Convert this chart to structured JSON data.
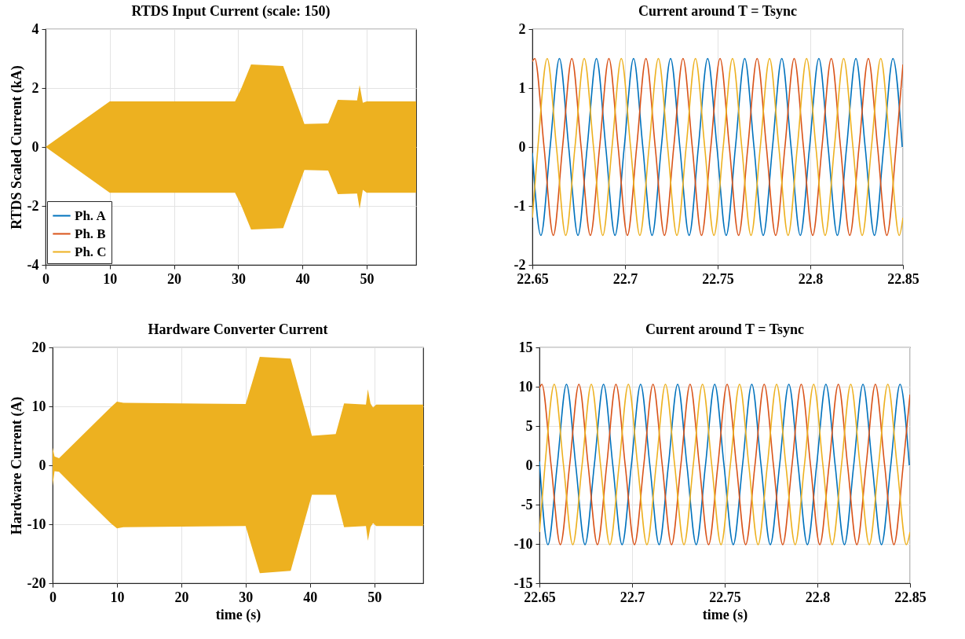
{
  "chart_data": [
    {
      "type": "line",
      "title": "RTDS Input Current (scale: 150)",
      "ylabel": "RTDS Scaled Current (kA)",
      "x": [
        0,
        10,
        23,
        29.5,
        30.5,
        32,
        37,
        40.3,
        44,
        45.5,
        48.5,
        48.9,
        49.4,
        50,
        57.7
      ],
      "xlim": [
        0,
        57.7
      ],
      "xticks": [
        0,
        10,
        20,
        30,
        40,
        50
      ],
      "ylim": [
        -4,
        4
      ],
      "yticks": [
        -4,
        -2,
        0,
        2,
        4
      ],
      "grid": true,
      "legend": "bottom left",
      "series": [
        {
          "name": "Ph. A",
          "color": "#0072bd",
          "values": [
            null,
            null,
            null,
            null,
            null,
            null,
            null,
            null,
            null,
            null,
            null,
            null,
            null,
            null,
            null
          ]
        },
        {
          "name": "Ph. B",
          "color": "#d95319",
          "values": [
            null,
            null,
            null,
            null,
            null,
            null,
            null,
            null,
            null,
            null,
            null,
            null,
            null,
            null,
            null
          ]
        },
        {
          "name": "Ph. C",
          "color": "#edb120",
          "values": [
            null,
            null,
            null,
            null,
            null,
            null,
            null,
            null,
            null,
            null,
            null,
            null,
            null,
            null,
            null
          ],
          "upper": [
            0,
            1.55,
            1.55,
            1.55,
            2.0,
            2.8,
            2.75,
            0.78,
            0.8,
            1.6,
            1.58,
            2.1,
            1.5,
            1.55,
            1.55
          ],
          "lower": [
            0,
            -1.55,
            -1.55,
            -1.55,
            -2.0,
            -2.8,
            -2.75,
            -0.78,
            -0.8,
            -1.6,
            -1.58,
            -2.1,
            -1.45,
            -1.55,
            -1.55
          ]
        }
      ]
    },
    {
      "type": "line",
      "title": "Current around T = Tsync",
      "xlim": [
        22.65,
        22.85
      ],
      "xticks": [
        22.65,
        22.7,
        22.75,
        22.8,
        22.85
      ],
      "ylim": [
        -2,
        2
      ],
      "yticks": [
        -2,
        -1,
        0,
        1,
        2
      ],
      "grid": true,
      "series": [
        {
          "color": "#0072bd",
          "x": [
            22.65,
            22.6546,
            22.6596,
            22.6646,
            22.6696,
            22.6746,
            22.6796,
            22.6846,
            22.6896,
            22.6946,
            22.6996,
            22.7046,
            22.7096,
            22.7146,
            22.7196,
            22.7246,
            22.7296,
            22.7346,
            22.7396,
            22.7446,
            22.7496,
            22.7546,
            22.7596,
            22.7646,
            22.7696,
            22.7746,
            22.7796,
            22.7846,
            22.7896,
            22.7946,
            22.7996,
            22.8046,
            22.8096,
            22.8146,
            22.8196,
            22.8246,
            22.8296,
            22.8346,
            22.8396,
            22.8446,
            22.8496
          ],
          "values": [
            -0.1,
            -1.5,
            0,
            1.5,
            0,
            -1.5,
            0,
            1.5,
            0,
            -1.5,
            0,
            1.5,
            0,
            -1.5,
            0,
            1.5,
            0,
            -1.5,
            0,
            1.5,
            0,
            -1.5,
            0,
            1.5,
            0,
            -1.5,
            0,
            1.5,
            0,
            -1.5,
            0,
            1.5,
            0,
            -1.5,
            0,
            1.5,
            0,
            -1.5,
            0,
            1.5,
            0
          ]
        },
        {
          "color": "#d95319",
          "x": [
            22.65,
            22.6513,
            22.6563,
            22.6613,
            22.6663,
            22.6713,
            22.6763,
            22.6813,
            22.6863,
            22.6913,
            22.6963,
            22.7013,
            22.7063,
            22.7113,
            22.7163,
            22.7213,
            22.7263,
            22.7313,
            22.7363,
            22.7413,
            22.7463,
            22.7513,
            22.7563,
            22.7613,
            22.7663,
            22.7713,
            22.7763,
            22.7813,
            22.7863,
            22.7913,
            22.7963,
            22.8013,
            22.8063,
            22.8113,
            22.8163,
            22.8213,
            22.8263,
            22.8313,
            22.8363,
            22.8413,
            22.8463,
            22.85
          ],
          "values": [
            1.45,
            1.5,
            0,
            -1.5,
            0,
            1.5,
            0,
            -1.5,
            0,
            1.5,
            0,
            -1.5,
            0,
            1.5,
            0,
            -1.5,
            0,
            1.5,
            0,
            -1.5,
            0,
            1.5,
            0,
            -1.5,
            0,
            1.5,
            0,
            -1.5,
            0,
            1.5,
            0,
            -1.5,
            0,
            1.5,
            0,
            -1.5,
            0,
            1.5,
            0,
            -1.5,
            0,
            1.4
          ]
        },
        {
          "color": "#edb120",
          "x": [
            22.65,
            22.653,
            22.658,
            22.663,
            22.668,
            22.673,
            22.678,
            22.683,
            22.688,
            22.693,
            22.698,
            22.703,
            22.708,
            22.713,
            22.718,
            22.723,
            22.728,
            22.733,
            22.738,
            22.743,
            22.748,
            22.753,
            22.758,
            22.763,
            22.768,
            22.773,
            22.778,
            22.783,
            22.788,
            22.793,
            22.798,
            22.803,
            22.808,
            22.813,
            22.818,
            22.823,
            22.828,
            22.833,
            22.838,
            22.843,
            22.848,
            22.85
          ],
          "values": [
            -1.2,
            0,
            1.5,
            0,
            -1.5,
            0,
            1.5,
            0,
            -1.5,
            0,
            1.5,
            0,
            -1.5,
            0,
            1.5,
            0,
            -1.5,
            0,
            1.5,
            0,
            -1.5,
            0,
            1.5,
            0,
            -1.5,
            0,
            1.5,
            0,
            -1.5,
            0,
            1.5,
            0,
            -1.5,
            0,
            1.5,
            0,
            -1.5,
            0,
            1.5,
            0,
            -1.5,
            -1.2
          ]
        }
      ]
    },
    {
      "type": "line",
      "title": "Hardware Converter Current",
      "xlabel": "time (s)",
      "ylabel": "Hardware Current (A)",
      "x": [
        0,
        0.3,
        1,
        5,
        9,
        10,
        11,
        30,
        31,
        32.2,
        37,
        40.3,
        44,
        45.3,
        48.7,
        49,
        49.4,
        49.8,
        50.3,
        57.6
      ],
      "xlim": [
        0,
        57.6
      ],
      "xticks": [
        0,
        10,
        20,
        30,
        40,
        50
      ],
      "ylim": [
        -20,
        20
      ],
      "yticks": [
        -20,
        -10,
        0,
        10,
        20
      ],
      "grid": true,
      "series": [
        {
          "color": "#edb120",
          "values": [
            null,
            null,
            null,
            null,
            null,
            null,
            null,
            null,
            null,
            null,
            null,
            null,
            null,
            null,
            null,
            null,
            null,
            null,
            null,
            null
          ],
          "upper": [
            3,
            1.5,
            1.2,
            5.5,
            9.8,
            10.8,
            10.6,
            10.4,
            14,
            18.4,
            18.1,
            5,
            5.3,
            10.5,
            10.3,
            12.9,
            10.5,
            9.8,
            10.3,
            10.3
          ],
          "lower": [
            -3.5,
            -1,
            -1.1,
            -5.5,
            -9.8,
            -10.7,
            -10.5,
            -10.3,
            -14,
            -18.3,
            -17.9,
            -5,
            -5,
            -10.5,
            -10.3,
            -12.8,
            -10.5,
            -9.8,
            -10.3,
            -10.3
          ]
        }
      ]
    },
    {
      "type": "line",
      "title": "Current around T = Tsync",
      "xlabel": "time (s)",
      "xlim": [
        22.65,
        22.85
      ],
      "xticks": [
        22.65,
        22.7,
        22.75,
        22.8,
        22.85
      ],
      "ylim": [
        -15,
        15
      ],
      "yticks": [
        -15,
        -10,
        -5,
        0,
        5,
        10,
        15
      ],
      "grid": true,
      "series": [
        {
          "color": "#0072bd",
          "x": [
            22.65,
            22.6546,
            22.6596,
            22.6646,
            22.6696,
            22.6746,
            22.6796,
            22.6846,
            22.6896,
            22.6946,
            22.6996,
            22.7046,
            22.7096,
            22.7146,
            22.7196,
            22.7246,
            22.7296,
            22.7346,
            22.7396,
            22.7446,
            22.7496,
            22.7546,
            22.7596,
            22.7646,
            22.7696,
            22.7746,
            22.7796,
            22.7846,
            22.7896,
            22.7946,
            22.7996,
            22.8046,
            22.8096,
            22.8146,
            22.8196,
            22.8246,
            22.8296,
            22.8346,
            22.8396,
            22.8446,
            22.8496
          ],
          "values": [
            0.5,
            -10.1,
            0,
            10.3,
            0,
            -10.1,
            0,
            10.3,
            0,
            -10.1,
            0,
            10.3,
            0,
            -10.1,
            0,
            10.3,
            0,
            -10.1,
            0,
            10.3,
            0,
            -10.1,
            0,
            10.3,
            0,
            -10.1,
            0,
            10.3,
            0,
            -10.1,
            0,
            10.3,
            0,
            -10.1,
            0,
            10.3,
            0,
            -10.1,
            0,
            10.3,
            0
          ]
        },
        {
          "color": "#d95319",
          "x": [
            22.65,
            22.6513,
            22.6563,
            22.6613,
            22.6663,
            22.6713,
            22.6763,
            22.6813,
            22.6863,
            22.6913,
            22.6963,
            22.7013,
            22.7063,
            22.7113,
            22.7163,
            22.7213,
            22.7263,
            22.7313,
            22.7363,
            22.7413,
            22.7463,
            22.7513,
            22.7563,
            22.7613,
            22.7663,
            22.7713,
            22.7763,
            22.7813,
            22.7863,
            22.7913,
            22.7963,
            22.8013,
            22.8063,
            22.8113,
            22.8163,
            22.8213,
            22.8263,
            22.8313,
            22.8363,
            22.8413,
            22.8463,
            22.85
          ],
          "values": [
            9.8,
            10.3,
            0,
            -10.1,
            0,
            10.3,
            0,
            -10.1,
            0,
            10.3,
            0,
            -10.1,
            0,
            10.3,
            0,
            -10.1,
            0,
            10.3,
            0,
            -10.1,
            0,
            10.3,
            0,
            -10.1,
            0,
            10.3,
            0,
            -10.1,
            0,
            10.3,
            0,
            -10.1,
            0,
            10.3,
            0,
            -10.1,
            0,
            10.3,
            0,
            -10.1,
            0,
            9
          ]
        },
        {
          "color": "#edb120",
          "x": [
            22.65,
            22.653,
            22.658,
            22.663,
            22.668,
            22.673,
            22.678,
            22.683,
            22.688,
            22.693,
            22.698,
            22.703,
            22.708,
            22.713,
            22.718,
            22.723,
            22.728,
            22.733,
            22.738,
            22.743,
            22.748,
            22.753,
            22.758,
            22.763,
            22.768,
            22.773,
            22.778,
            22.783,
            22.788,
            22.793,
            22.798,
            22.803,
            22.808,
            22.813,
            22.818,
            22.823,
            22.828,
            22.833,
            22.838,
            22.843,
            22.848,
            22.85
          ],
          "values": [
            -8.5,
            0,
            10.3,
            0,
            -10.1,
            0,
            10.3,
            0,
            -10.1,
            0,
            10.3,
            0,
            -10.1,
            0,
            10.3,
            0,
            -10.1,
            0,
            10.3,
            0,
            -10.1,
            0,
            10.3,
            0,
            -10.1,
            0,
            10.3,
            0,
            -10.1,
            0,
            10.3,
            0,
            -10.1,
            0,
            10.3,
            0,
            -10.1,
            0,
            10.3,
            0,
            -10.1,
            -8.5
          ]
        }
      ]
    }
  ]
}
